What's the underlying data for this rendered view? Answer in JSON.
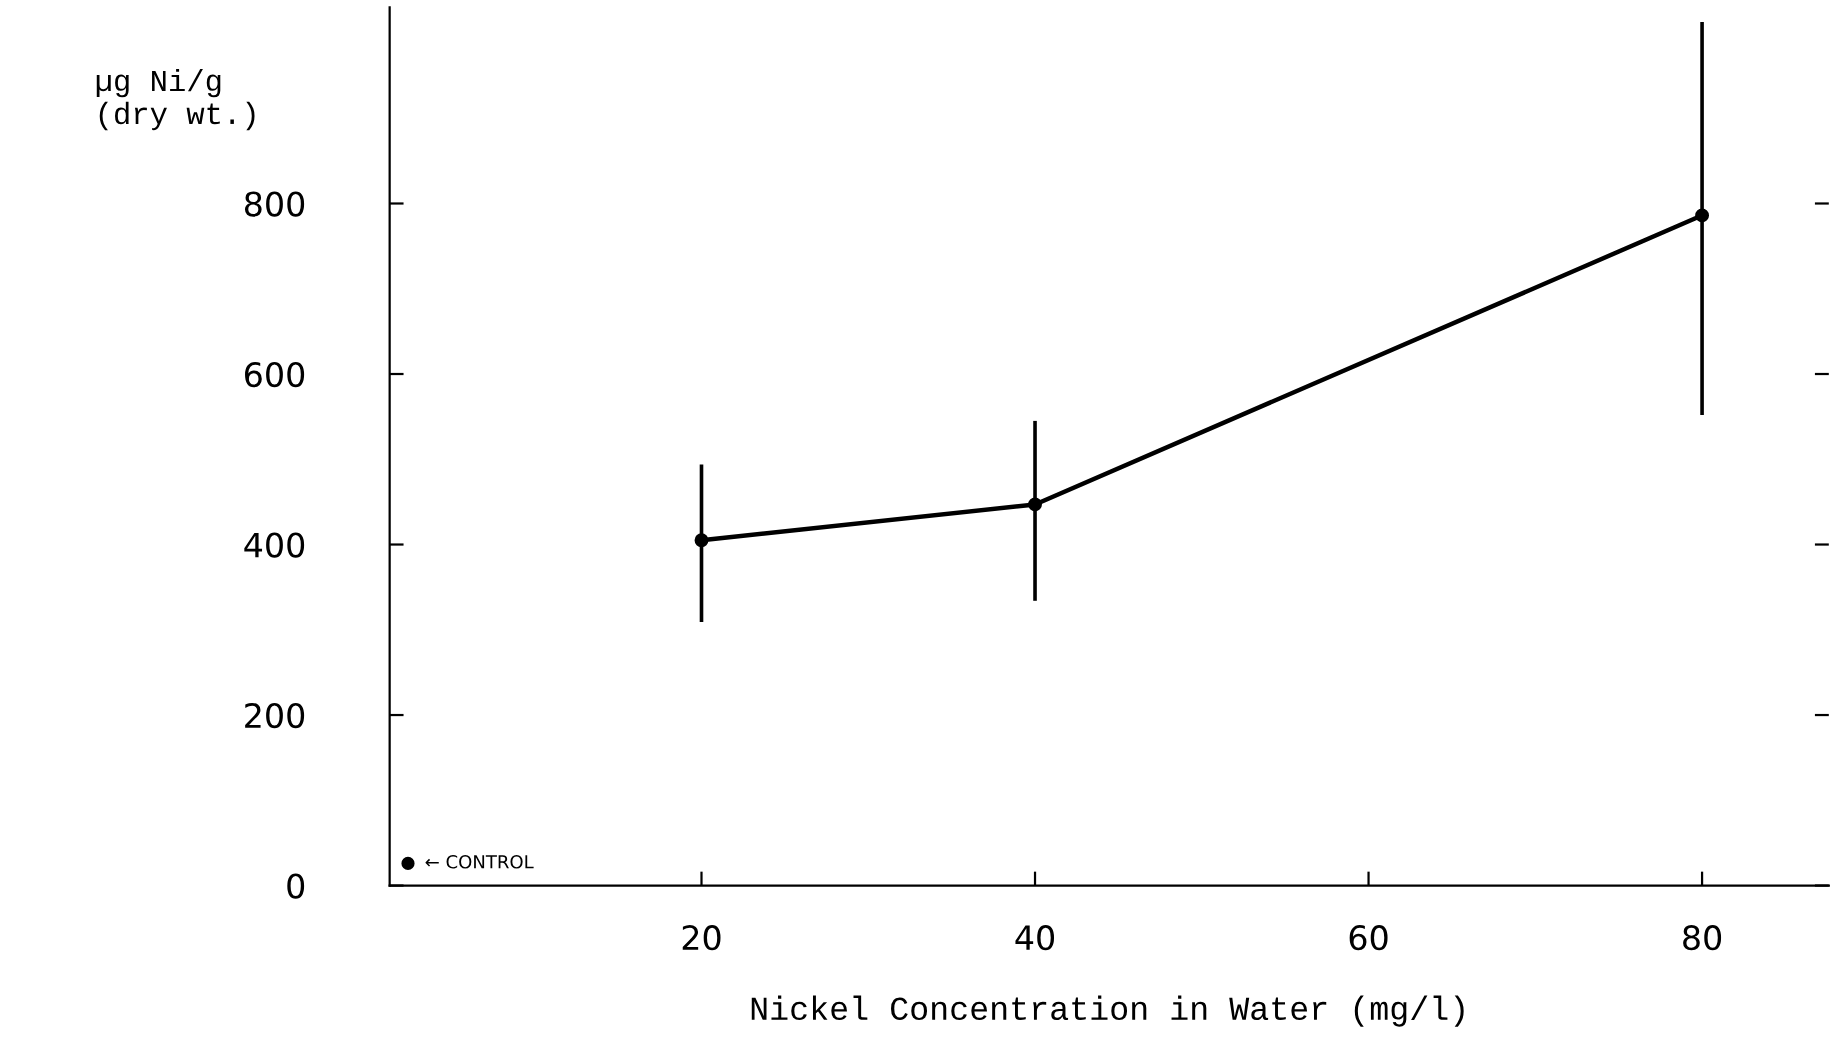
{
  "chart_data": {
    "type": "line",
    "xlabel": "Nickel Concentration in Water (mg/l)",
    "ylabel": "µg Ni/g\n(dry wt.)",
    "xlim": [
      1.3,
      87.6
    ],
    "xticks": [
      20,
      40,
      60,
      80
    ],
    "ylim": [
      0,
      1030
    ],
    "yticks": [
      0,
      200,
      400,
      600,
      800
    ],
    "grid": false,
    "legend": false,
    "marker": "circle",
    "line_style": "solid",
    "series": [
      {
        "color": "#000000",
        "x": [
          20,
          40,
          80
        ],
        "values": [
          405,
          447,
          786
        ],
        "errors": [
          [
            309,
            494
          ],
          [
            334,
            545
          ],
          [
            552,
            1013
          ]
        ]
      },
      {
        "type": "scatter",
        "color": "#000000",
        "x": [
          2.4
        ],
        "values": [
          26
        ]
      }
    ],
    "annotations": [
      {
        "text": "← CONTROL",
        "x": 2.4,
        "y": 26
      }
    ]
  }
}
